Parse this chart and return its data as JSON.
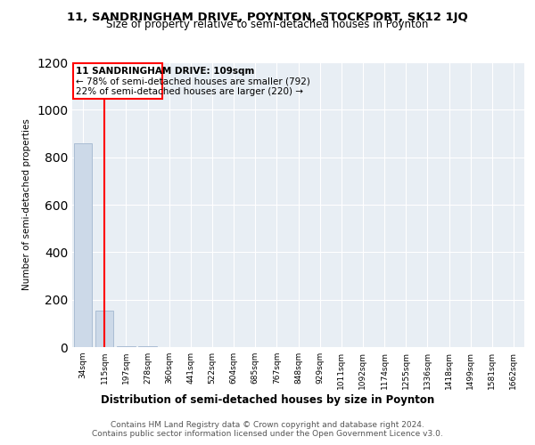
{
  "title1": "11, SANDRINGHAM DRIVE, POYNTON, STOCKPORT, SK12 1JQ",
  "title2": "Size of property relative to semi-detached houses in Poynton",
  "xlabel": "Distribution of semi-detached houses by size in Poynton",
  "ylabel": "Number of semi-detached properties",
  "footnote1": "Contains HM Land Registry data © Crown copyright and database right 2024.",
  "footnote2": "Contains public sector information licensed under the Open Government Licence v3.0.",
  "annotation_line1": "11 SANDRINGHAM DRIVE: 109sqm",
  "annotation_line2": "← 78% of semi-detached houses are smaller (792)",
  "annotation_line3": "22% of semi-detached houses are larger (220) →",
  "categories": [
    "34sqm",
    "115sqm",
    "197sqm",
    "278sqm",
    "360sqm",
    "441sqm",
    "522sqm",
    "604sqm",
    "685sqm",
    "767sqm",
    "848sqm",
    "929sqm",
    "1011sqm",
    "1092sqm",
    "1174sqm",
    "1255sqm",
    "1336sqm",
    "1418sqm",
    "1499sqm",
    "1581sqm",
    "1662sqm"
  ],
  "values": [
    860,
    155,
    5,
    2,
    1,
    1,
    0,
    0,
    0,
    0,
    0,
    0,
    0,
    0,
    0,
    0,
    0,
    0,
    0,
    0,
    0
  ],
  "bar_color": "#ccd9e8",
  "bar_edge_color": "#aabdd4",
  "property_line_color": "red",
  "property_line_x": 1,
  "annotation_box_color": "red",
  "ylim": [
    0,
    1200
  ],
  "yticks": [
    0,
    200,
    400,
    600,
    800,
    1000,
    1200
  ],
  "fig_background_color": "#ffffff",
  "plot_background": "#e8eef4"
}
